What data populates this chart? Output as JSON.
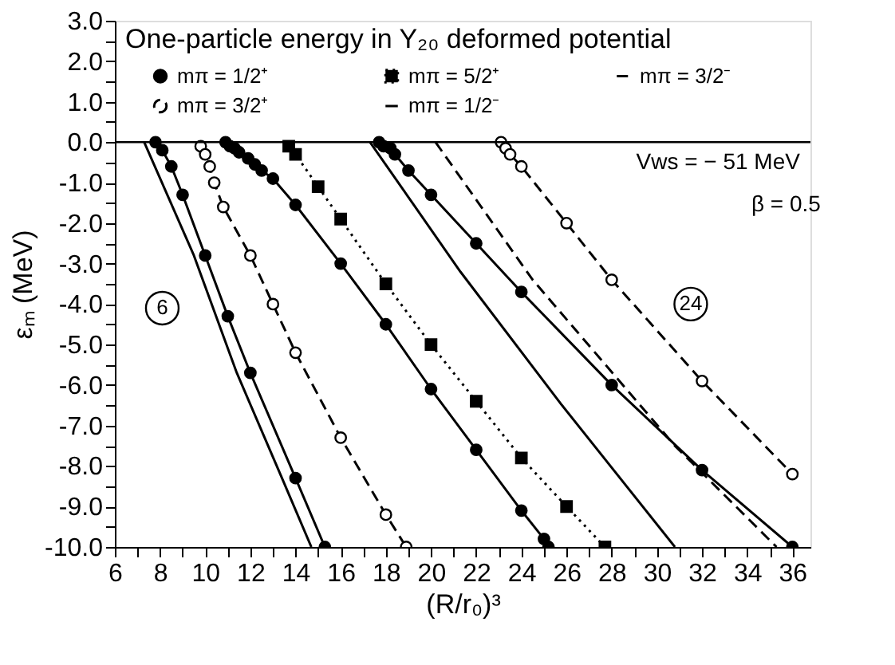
{
  "chart_data": {
    "type": "line",
    "title": "One-particle energy in Y₂₀ deformed potential",
    "xlabel": "(R/r₀)³",
    "ylabel": "εₘ (MeV)",
    "xlim": [
      6,
      36.8
    ],
    "ylim": [
      -10,
      3
    ],
    "xticks": [
      6,
      {
        "value": 7,
        "label": null
      },
      8,
      {
        "value": 9,
        "label": null
      },
      10,
      {
        "value": 11,
        "label": null
      },
      12,
      {
        "value": 13,
        "label": null
      },
      14,
      {
        "value": 15,
        "label": null
      },
      16,
      {
        "value": 17,
        "label": null
      },
      18,
      {
        "value": 19,
        "label": null
      },
      20,
      {
        "value": 21,
        "label": null
      },
      22,
      {
        "value": 23,
        "label": null
      },
      24,
      {
        "value": 25,
        "label": null
      },
      26,
      {
        "value": 27,
        "label": null
      },
      28,
      {
        "value": 29,
        "label": null
      },
      30,
      {
        "value": 31,
        "label": null
      },
      32,
      {
        "value": 33,
        "label": null
      },
      34,
      {
        "value": 35,
        "label": null
      },
      36
    ],
    "yticks": [
      {
        "value": -10,
        "label": "-10.0"
      },
      {
        "value": -9.5,
        "label": null
      },
      {
        "value": -9,
        "label": "-9.0"
      },
      {
        "value": -8.5,
        "label": null
      },
      {
        "value": -8,
        "label": "-8.0"
      },
      {
        "value": -7.5,
        "label": null
      },
      {
        "value": -7,
        "label": "-7.0"
      },
      {
        "value": -6.5,
        "label": null
      },
      {
        "value": -6,
        "label": "-6.0"
      },
      {
        "value": -5.5,
        "label": null
      },
      {
        "value": -5,
        "label": "-5.0"
      },
      {
        "value": -4.5,
        "label": null
      },
      {
        "value": -4,
        "label": "-4.0"
      },
      {
        "value": -3.5,
        "label": null
      },
      {
        "value": -3,
        "label": "-3.0"
      },
      {
        "value": -2.5,
        "label": null
      },
      {
        "value": -2,
        "label": "-2.0"
      },
      {
        "value": -1.5,
        "label": null
      },
      {
        "value": -1,
        "label": "-1.0"
      },
      {
        "value": -0.5,
        "label": null
      },
      {
        "value": 0,
        "label": "0.0"
      },
      {
        "value": 0.5,
        "label": null
      },
      {
        "value": 1,
        "label": "1.0"
      },
      {
        "value": 1.5,
        "label": null
      },
      {
        "value": 2,
        "label": "2.0"
      },
      {
        "value": 2.5,
        "label": null
      },
      {
        "value": 3,
        "label": "3.0"
      }
    ],
    "grid": false,
    "legend": "top",
    "ref_lines": [
      {
        "axis": "y",
        "value": 0,
        "color": "#000000"
      }
    ],
    "annotations": [
      {
        "text": "6",
        "x": 8.1,
        "y": -4.1
      },
      {
        "text": "24",
        "x": 31.5,
        "y": -4.0
      },
      "Vws = − 51 MeV",
      "β = 0.5"
    ],
    "series": [
      {
        "name": "mπ = 1/2⁺",
        "color": "#000000",
        "line_style": "solid",
        "marker": "circle",
        "x": [
          7.8,
          8.1,
          8.5,
          9.0,
          10.0,
          11.0,
          12.0,
          14.0,
          15.3
        ],
        "values": [
          0,
          -0.2,
          -0.6,
          -1.3,
          -2.8,
          -4.3,
          -5.7,
          -8.3,
          -10
        ]
      },
      {
        "name": "mπ = 3/2⁺",
        "color": "#000000",
        "line_style": "dashed",
        "marker": "circle",
        "x": [
          9.8,
          10.0,
          10.2,
          10.4,
          10.8,
          12.0,
          13.0,
          14.0,
          16.0,
          18.0,
          18.9
        ],
        "values": [
          -0.1,
          -0.3,
          -0.6,
          -1.0,
          -1.6,
          -2.8,
          -4.0,
          -5.2,
          -7.3,
          -9.2,
          -10
        ]
      },
      {
        "name": "mπ = 5/2⁺",
        "color": "#000000",
        "line_style": "dotted",
        "marker": "square",
        "x": [
          13.7,
          14.0,
          15.0,
          16.0,
          18.0,
          20.0,
          22.0,
          24.0,
          26.0,
          27.7
        ],
        "values": [
          -0.1,
          -0.3,
          -1.1,
          -1.9,
          -3.5,
          -5.0,
          -6.4,
          -7.8,
          -9.0,
          -10
        ]
      },
      {
        "name": "mπ = 1/2⁻",
        "color": "#000000",
        "line_style": "solid",
        "marker": "none",
        "x": [
          7.3,
          9.5,
          11.4,
          13.4,
          14.7
        ],
        "values": [
          0,
          -2.8,
          -5.7,
          -8.3,
          -10
        ]
      },
      {
        "name": "mπ = 3/2⁻",
        "color": "#000000",
        "line_style": "dashed",
        "marker": "none",
        "x": [
          20.2,
          24.5,
          30.8,
          35.3
        ],
        "values": [
          0,
          -3.4,
          -7.5,
          -10
        ]
      },
      {
        "color": "#000000",
        "line_style": "solid",
        "marker": "circle",
        "x": [
          10.9,
          11.1,
          11.3,
          11.5,
          11.9,
          12.2,
          12.5,
          13.0,
          14.0,
          16.0,
          18.0,
          20.0,
          22.0,
          24.0,
          25.0,
          25.2
        ],
        "values": [
          0,
          -0.1,
          -0.15,
          -0.25,
          -0.4,
          -0.55,
          -0.7,
          -0.9,
          -1.55,
          -3.0,
          -4.5,
          -6.1,
          -7.6,
          -9.1,
          -9.8,
          -10
        ]
      },
      {
        "color": "#000000",
        "line_style": "solid",
        "marker": "none",
        "x": [
          17.3,
          21.3,
          25.8,
          30.8
        ],
        "values": [
          0,
          -3.2,
          -6.5,
          -10
        ]
      },
      {
        "color": "#000000",
        "line_style": "solid",
        "marker": "circle",
        "x": [
          17.7,
          17.9,
          18.2,
          18.4,
          19.0,
          20.0,
          22.0,
          24.0,
          28.0,
          32.0,
          36.0
        ],
        "values": [
          0,
          -0.1,
          -0.15,
          -0.3,
          -0.7,
          -1.3,
          -2.5,
          -3.7,
          -6.0,
          -8.1,
          -10
        ]
      },
      {
        "color": "#000000",
        "line_style": "dashed",
        "marker": "circle",
        "x": [
          23.1,
          23.3,
          23.5,
          24.0,
          26.0,
          28.0,
          32.0,
          36.0
        ],
        "values": [
          0,
          -0.15,
          -0.3,
          -0.6,
          -2.0,
          -3.4,
          -5.9,
          -8.2
        ]
      }
    ]
  }
}
